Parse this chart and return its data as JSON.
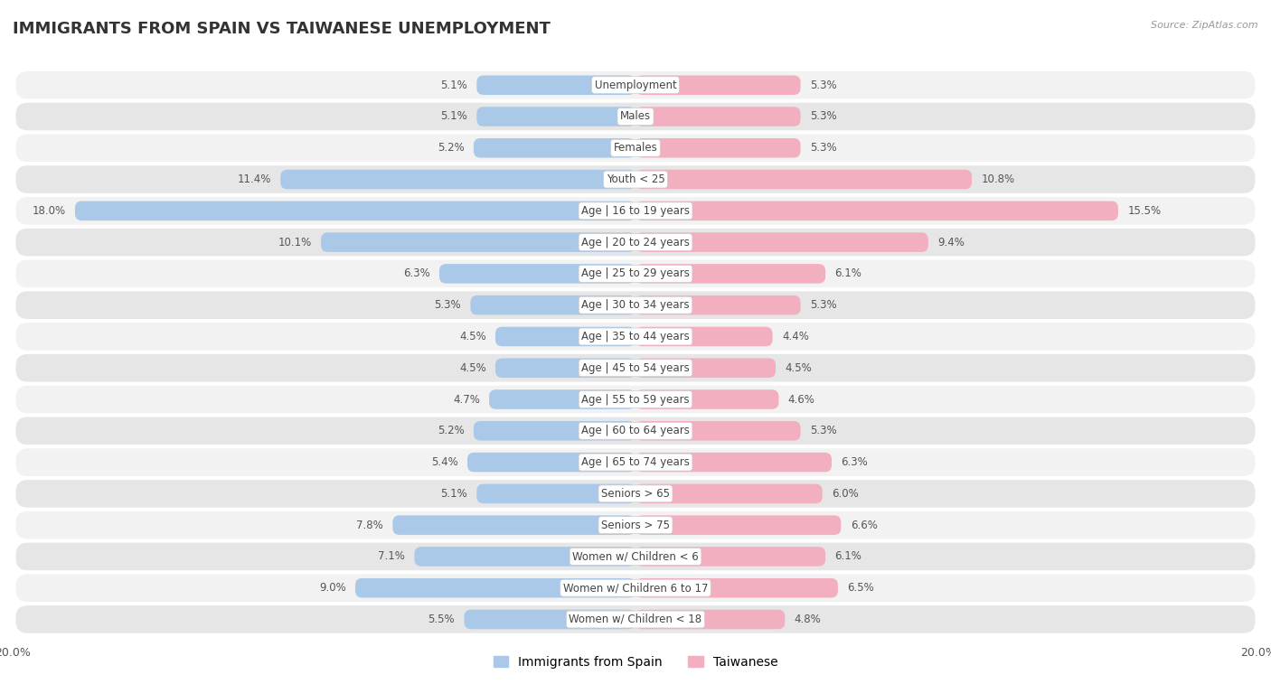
{
  "title": "IMMIGRANTS FROM SPAIN VS TAIWANESE UNEMPLOYMENT",
  "source": "Source: ZipAtlas.com",
  "categories": [
    "Unemployment",
    "Males",
    "Females",
    "Youth < 25",
    "Age | 16 to 19 years",
    "Age | 20 to 24 years",
    "Age | 25 to 29 years",
    "Age | 30 to 34 years",
    "Age | 35 to 44 years",
    "Age | 45 to 54 years",
    "Age | 55 to 59 years",
    "Age | 60 to 64 years",
    "Age | 65 to 74 years",
    "Seniors > 65",
    "Seniors > 75",
    "Women w/ Children < 6",
    "Women w/ Children 6 to 17",
    "Women w/ Children < 18"
  ],
  "spain_values": [
    5.1,
    5.1,
    5.2,
    11.4,
    18.0,
    10.1,
    6.3,
    5.3,
    4.5,
    4.5,
    4.7,
    5.2,
    5.4,
    5.1,
    7.8,
    7.1,
    9.0,
    5.5
  ],
  "taiwan_values": [
    5.3,
    5.3,
    5.3,
    10.8,
    15.5,
    9.4,
    6.1,
    5.3,
    4.4,
    4.5,
    4.6,
    5.3,
    6.3,
    6.0,
    6.6,
    6.1,
    6.5,
    4.8
  ],
  "spain_color": "#aac9e8",
  "taiwan_color": "#f2afc0",
  "row_light": "#f2f2f2",
  "row_dark": "#e6e6e6",
  "background_color": "#ffffff",
  "max_value": 20.0,
  "title_fontsize": 13,
  "label_fontsize": 8.5,
  "value_fontsize": 8.5,
  "legend_fontsize": 10
}
